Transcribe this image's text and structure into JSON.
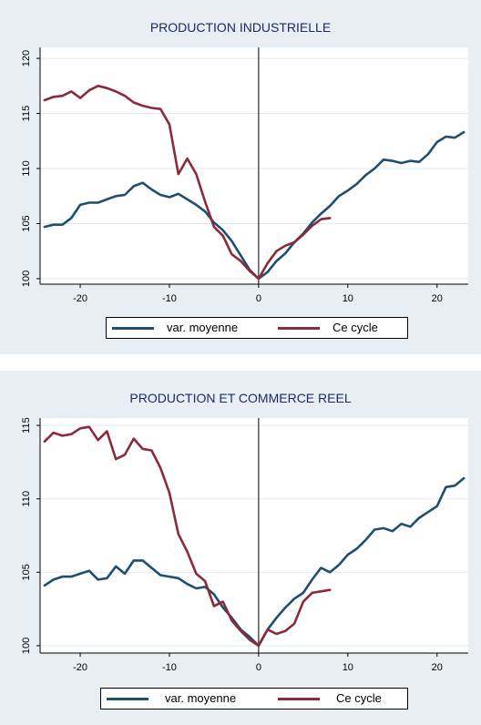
{
  "chart_data": [
    {
      "type": "line",
      "title": "PRODUCTION INDUSTRIELLE",
      "xlabel": "",
      "ylabel": "",
      "xlim": [
        -24.5,
        23.5
      ],
      "ylim": [
        99.5,
        121
      ],
      "xticks": [
        -20,
        -10,
        0,
        10,
        20
      ],
      "yticks": [
        100,
        105,
        110,
        115,
        120
      ],
      "vline": 0,
      "legend_position": "bottom",
      "series": [
        {
          "name": "var. moyenne",
          "color": "#1f4e6e",
          "x": [
            -24,
            -23,
            -22,
            -21,
            -20,
            -19,
            -18,
            -17,
            -16,
            -15,
            -14,
            -13,
            -12,
            -11,
            -10,
            -9,
            -8,
            -7,
            -6,
            -5,
            -4,
            -3,
            -2,
            -1,
            0,
            1,
            2,
            3,
            4,
            5,
            6,
            7,
            8,
            9,
            10,
            11,
            12,
            13,
            14,
            15,
            16,
            17,
            18,
            19,
            20,
            21,
            22,
            23
          ],
          "y": [
            104.7,
            104.9,
            104.9,
            105.5,
            106.7,
            106.9,
            106.9,
            107.2,
            107.5,
            107.6,
            108.4,
            108.7,
            108.1,
            107.6,
            107.4,
            107.7,
            107.2,
            106.7,
            106.1,
            105.1,
            104.4,
            103.4,
            102.1,
            100.8,
            100.0,
            100.6,
            101.6,
            102.3,
            103.3,
            104.1,
            105.1,
            105.9,
            106.6,
            107.5,
            108.0,
            108.6,
            109.4,
            110.0,
            110.8,
            110.7,
            110.5,
            110.7,
            110.6,
            111.3,
            112.4,
            112.9,
            112.8,
            113.3
          ]
        },
        {
          "name": "Ce cycle",
          "color": "#8b2a3a",
          "x": [
            -24,
            -23,
            -22,
            -21,
            -20,
            -19,
            -18,
            -17,
            -16,
            -15,
            -14,
            -13,
            -12,
            -11,
            -10,
            -9,
            -8,
            -7,
            -6,
            -5,
            -4,
            -3,
            -2,
            -1,
            0,
            1,
            2,
            3,
            4,
            5,
            6,
            7,
            8
          ],
          "y": [
            116.2,
            116.5,
            116.6,
            117.0,
            116.4,
            117.1,
            117.5,
            117.3,
            117.0,
            116.6,
            116.0,
            115.7,
            115.5,
            115.4,
            114.0,
            109.5,
            110.9,
            109.5,
            107.0,
            104.7,
            103.9,
            102.2,
            101.6,
            100.7,
            100.0,
            101.4,
            102.5,
            103.0,
            103.3,
            104.0,
            104.8,
            105.4,
            105.5
          ]
        }
      ]
    },
    {
      "type": "line",
      "title": "PRODUCTION ET COMMERCE REEL",
      "xlabel": "",
      "ylabel": "",
      "xlim": [
        -24.5,
        23.5
      ],
      "ylim": [
        99.5,
        115.5
      ],
      "xticks": [
        -20,
        -10,
        0,
        10,
        20
      ],
      "yticks": [
        100,
        105,
        110,
        115
      ],
      "vline": 0,
      "legend_position": "bottom",
      "series": [
        {
          "name": "var. moyenne",
          "color": "#1f4e6e",
          "x": [
            -24,
            -23,
            -22,
            -21,
            -20,
            -19,
            -18,
            -17,
            -16,
            -15,
            -14,
            -13,
            -12,
            -11,
            -10,
            -9,
            -8,
            -7,
            -6,
            -5,
            -4,
            -3,
            -2,
            -1,
            0,
            1,
            2,
            3,
            4,
            5,
            6,
            7,
            8,
            9,
            10,
            11,
            12,
            13,
            14,
            15,
            16,
            17,
            18,
            19,
            20,
            21,
            22,
            23
          ],
          "y": [
            104.1,
            104.5,
            104.7,
            104.7,
            104.9,
            105.1,
            104.5,
            104.6,
            105.4,
            104.9,
            105.8,
            105.8,
            105.3,
            104.8,
            104.7,
            104.6,
            104.2,
            103.9,
            104.0,
            103.5,
            102.6,
            101.9,
            101.1,
            100.6,
            100.0,
            101.1,
            101.9,
            102.6,
            103.2,
            103.6,
            104.5,
            105.3,
            105.0,
            105.5,
            106.2,
            106.6,
            107.2,
            107.9,
            108.0,
            107.8,
            108.3,
            108.1,
            108.7,
            109.1,
            109.5,
            110.8,
            110.9,
            111.4
          ]
        },
        {
          "name": "Ce cycle",
          "color": "#8b2a3a",
          "x": [
            -24,
            -23,
            -22,
            -21,
            -20,
            -19,
            -18,
            -17,
            -16,
            -15,
            -14,
            -13,
            -12,
            -11,
            -10,
            -9,
            -8,
            -7,
            -6,
            -5,
            -4,
            -3,
            -2,
            -1,
            0,
            1,
            2,
            3,
            4,
            5,
            6,
            7,
            8
          ],
          "y": [
            113.9,
            114.5,
            114.3,
            114.4,
            114.8,
            114.9,
            114.0,
            114.6,
            112.7,
            113.0,
            114.1,
            113.4,
            113.3,
            112.1,
            110.4,
            107.6,
            106.4,
            104.9,
            104.4,
            102.7,
            103.0,
            101.7,
            101.0,
            100.4,
            100.0,
            101.1,
            100.8,
            101.0,
            101.5,
            103.0,
            103.6,
            103.7,
            103.8
          ]
        }
      ]
    }
  ]
}
